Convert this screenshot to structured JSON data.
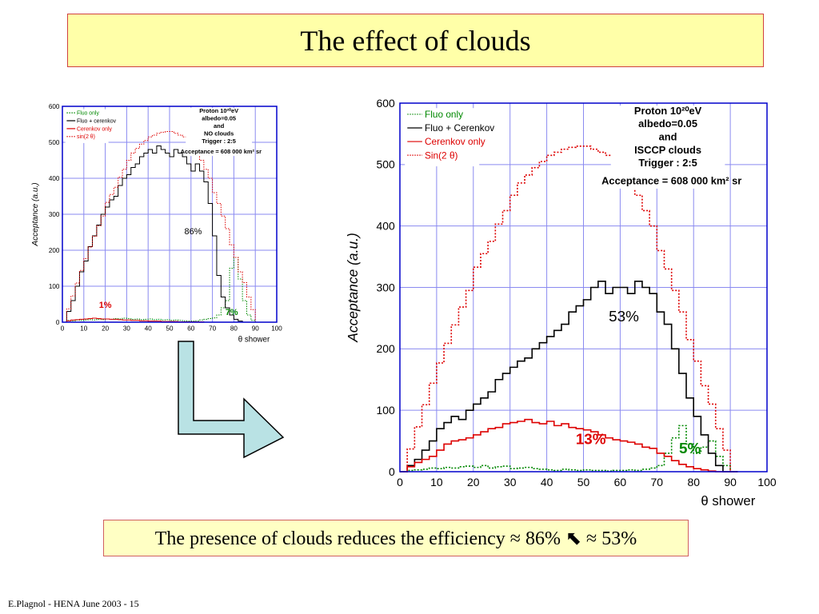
{
  "slide": {
    "title": "The effect of clouds",
    "summary_text": "The presence of clouds reduces the efficiency ≈ 86% ⬉ ≈ 53%",
    "footer": "E.Plagnol - HENA June 2003 - 15",
    "colors": {
      "title_bg": "#ffffa8",
      "title_border": "#d04040",
      "summary_bg": "#ffffc4",
      "arrow_fill": "#b9e2e4",
      "axes_frame": "#0000cc",
      "grid": "#8a8af0"
    }
  },
  "chart_data": [
    {
      "type": "line",
      "xlabel": "θ shower",
      "ylabel": "Acceptance (a.u.)",
      "xlim": [
        0,
        100
      ],
      "ylim": [
        0,
        600
      ],
      "x_ticks": [
        "0",
        "10",
        "20",
        "30",
        "40",
        "50",
        "60",
        "70",
        "80",
        "90",
        "100"
      ],
      "y_ticks": [
        "0",
        "100",
        "200",
        "300",
        "400",
        "500",
        "600"
      ],
      "grid": true,
      "legend_position": "top-left",
      "info_lines": [
        "Proton 10²⁰eV",
        "albedo=0.05",
        "and",
        "NO clouds",
        "Trigger : 2:5",
        "Acceptance = 608 000 km² sr"
      ],
      "annotations": [
        {
          "text": "86%",
          "x": 61,
          "y": 245,
          "color": "#000000"
        },
        {
          "text": "1%",
          "x": 20,
          "y": 40,
          "color": "#dd0000"
        },
        {
          "text": "7%",
          "x": 79,
          "y": 20,
          "color": "#008800"
        }
      ],
      "series": [
        {
          "name": "Fluo only",
          "color": "#008800",
          "style": "dotted",
          "x": [
            0,
            2,
            4,
            6,
            8,
            10,
            12,
            14,
            16,
            18,
            20,
            22,
            24,
            26,
            28,
            30,
            32,
            34,
            36,
            38,
            40,
            42,
            44,
            46,
            48,
            50,
            52,
            54,
            56,
            58,
            60,
            62,
            64,
            66,
            68,
            70,
            72,
            74,
            76,
            78,
            80,
            82,
            84,
            86,
            88,
            90
          ],
          "y": [
            0,
            5,
            4,
            6,
            5,
            6,
            7,
            6,
            8,
            7,
            9,
            8,
            10,
            9,
            11,
            10,
            8,
            9,
            7,
            8,
            9,
            7,
            8,
            6,
            7,
            5,
            6,
            5,
            4,
            3,
            3,
            4,
            6,
            8,
            10,
            12,
            20,
            40,
            60,
            150,
            180,
            120,
            60,
            20,
            5,
            0
          ]
        },
        {
          "name": "Fluo + cerenkov",
          "color": "#000000",
          "style": "solid",
          "x": [
            0,
            2,
            4,
            6,
            8,
            10,
            12,
            14,
            16,
            18,
            20,
            22,
            24,
            26,
            28,
            30,
            32,
            34,
            36,
            38,
            40,
            42,
            44,
            46,
            48,
            50,
            52,
            54,
            56,
            58,
            60,
            62,
            64,
            66,
            68,
            70,
            72,
            74,
            76,
            78,
            80,
            82,
            84,
            86,
            88,
            90
          ],
          "y": [
            0,
            30,
            60,
            100,
            140,
            170,
            210,
            240,
            270,
            300,
            320,
            340,
            350,
            380,
            400,
            410,
            430,
            440,
            460,
            470,
            480,
            470,
            490,
            480,
            470,
            460,
            480,
            470,
            460,
            440,
            420,
            440,
            420,
            390,
            330,
            240,
            130,
            70,
            40,
            20,
            8,
            3,
            0,
            0,
            0,
            0
          ]
        },
        {
          "name": "Cerenkov only",
          "color": "#dd0000",
          "style": "solid",
          "x": [
            0,
            2,
            4,
            6,
            8,
            10,
            12,
            14,
            16,
            18,
            20,
            22,
            24,
            26,
            28,
            30,
            32,
            34,
            36,
            38,
            40,
            42,
            44,
            46,
            48,
            50,
            52,
            54,
            56,
            58,
            60,
            62,
            64,
            66,
            68,
            70,
            72,
            74,
            76,
            78,
            80,
            82,
            84,
            86,
            88,
            90
          ],
          "y": [
            0,
            4,
            6,
            7,
            8,
            9,
            10,
            11,
            10,
            9,
            9,
            8,
            8,
            7,
            6,
            6,
            5,
            5,
            4,
            4,
            3,
            3,
            3,
            2,
            2,
            2,
            2,
            1,
            1,
            1,
            1,
            1,
            1,
            0,
            0,
            0,
            0,
            0,
            0,
            0,
            0,
            0,
            0,
            0,
            0,
            0
          ]
        },
        {
          "name": "sin(2 θ)",
          "color": "#dd0000",
          "style": "dotted",
          "x": [
            0,
            2,
            4,
            6,
            8,
            10,
            12,
            14,
            16,
            18,
            20,
            22,
            24,
            26,
            28,
            30,
            32,
            34,
            36,
            38,
            40,
            42,
            44,
            46,
            48,
            50,
            52,
            54,
            56,
            58,
            60,
            62,
            64,
            66,
            68,
            70,
            72,
            74,
            76,
            78,
            80,
            82,
            84,
            86,
            88,
            90
          ],
          "y": [
            0,
            37,
            73,
            109,
            144,
            177,
            209,
            239,
            268,
            295,
            333,
            355,
            375,
            403,
            425,
            450,
            470,
            483,
            495,
            505,
            515,
            520,
            525,
            528,
            530,
            530,
            525,
            520,
            515,
            505,
            490,
            470,
            450,
            425,
            400,
            360,
            330,
            295,
            260,
            215,
            180,
            140,
            110,
            70,
            35,
            0
          ]
        }
      ]
    },
    {
      "type": "line",
      "xlabel": "θ shower",
      "ylabel": "Acceptance (a.u.)",
      "xlim": [
        0,
        100
      ],
      "ylim": [
        0,
        600
      ],
      "x_ticks": [
        "0",
        "10",
        "20",
        "30",
        "40",
        "50",
        "60",
        "70",
        "80",
        "90",
        "100"
      ],
      "y_ticks": [
        "0",
        "100",
        "200",
        "300",
        "400",
        "500",
        "600"
      ],
      "grid": true,
      "legend_position": "top-left",
      "info_lines": [
        "Proton 10²⁰eV",
        "albedo=0.05",
        "and",
        "ISCCP clouds",
        "Trigger : 2:5",
        "Acceptance = 608 000 km² sr"
      ],
      "annotations": [
        {
          "text": "53%",
          "x": 61,
          "y": 245,
          "color": "#000000"
        },
        {
          "text": "13%",
          "x": 52,
          "y": 45,
          "color": "#dd0000"
        },
        {
          "text": "5%",
          "x": 79,
          "y": 30,
          "color": "#008800"
        }
      ],
      "series": [
        {
          "name": "Fluo only",
          "color": "#008800",
          "style": "dotted",
          "x": [
            0,
            2,
            4,
            6,
            8,
            10,
            12,
            14,
            16,
            18,
            20,
            22,
            24,
            26,
            28,
            30,
            32,
            34,
            36,
            38,
            40,
            42,
            44,
            46,
            48,
            50,
            52,
            54,
            56,
            58,
            60,
            62,
            64,
            66,
            68,
            70,
            72,
            74,
            76,
            78,
            80,
            82,
            84,
            86,
            88,
            90
          ],
          "y": [
            0,
            2,
            3,
            4,
            6,
            5,
            7,
            6,
            8,
            9,
            7,
            10,
            6,
            8,
            9,
            5,
            6,
            7,
            5,
            4,
            3,
            2,
            4,
            3,
            2,
            3,
            2,
            2,
            1,
            2,
            2,
            3,
            2,
            4,
            6,
            10,
            30,
            55,
            75,
            45,
            30,
            40,
            50,
            25,
            10,
            0
          ]
        },
        {
          "name": "Fluo + Cerenkov",
          "color": "#000000",
          "style": "solid",
          "x": [
            0,
            2,
            4,
            6,
            8,
            10,
            12,
            14,
            16,
            18,
            20,
            22,
            24,
            26,
            28,
            30,
            32,
            34,
            36,
            38,
            40,
            42,
            44,
            46,
            48,
            50,
            52,
            54,
            56,
            58,
            60,
            62,
            64,
            66,
            68,
            70,
            72,
            74,
            76,
            78,
            80,
            82,
            84,
            86,
            88,
            90
          ],
          "y": [
            0,
            10,
            20,
            35,
            50,
            70,
            80,
            90,
            85,
            100,
            110,
            120,
            130,
            150,
            160,
            170,
            180,
            185,
            200,
            210,
            220,
            230,
            240,
            260,
            270,
            280,
            300,
            310,
            290,
            300,
            300,
            290,
            310,
            300,
            290,
            260,
            240,
            200,
            160,
            120,
            90,
            60,
            30,
            10,
            0,
            0
          ]
        },
        {
          "name": "Cerenkov only",
          "color": "#dd0000",
          "style": "solid",
          "x": [
            0,
            2,
            4,
            6,
            8,
            10,
            12,
            14,
            16,
            18,
            20,
            22,
            24,
            26,
            28,
            30,
            32,
            34,
            36,
            38,
            40,
            42,
            44,
            46,
            48,
            50,
            52,
            54,
            56,
            58,
            60,
            62,
            64,
            66,
            68,
            70,
            72,
            74,
            76,
            78,
            80,
            82,
            84,
            86,
            88,
            90
          ],
          "y": [
            0,
            8,
            15,
            20,
            25,
            35,
            45,
            50,
            52,
            55,
            60,
            65,
            70,
            72,
            78,
            80,
            82,
            85,
            80,
            78,
            82,
            75,
            78,
            72,
            70,
            68,
            65,
            60,
            55,
            52,
            50,
            48,
            45,
            40,
            38,
            30,
            25,
            18,
            12,
            8,
            5,
            3,
            1,
            0,
            0,
            0
          ]
        },
        {
          "name": "Sin(2 θ)",
          "color": "#dd0000",
          "style": "dotted",
          "x": [
            0,
            2,
            4,
            6,
            8,
            10,
            12,
            14,
            16,
            18,
            20,
            22,
            24,
            26,
            28,
            30,
            32,
            34,
            36,
            38,
            40,
            42,
            44,
            46,
            48,
            50,
            52,
            54,
            56,
            58,
            60,
            62,
            64,
            66,
            68,
            70,
            72,
            74,
            76,
            78,
            80,
            82,
            84,
            86,
            88,
            90
          ],
          "y": [
            0,
            37,
            73,
            109,
            144,
            177,
            209,
            239,
            268,
            295,
            333,
            355,
            375,
            403,
            425,
            450,
            470,
            483,
            495,
            505,
            515,
            520,
            525,
            528,
            530,
            530,
            525,
            520,
            515,
            505,
            490,
            470,
            450,
            425,
            400,
            360,
            330,
            295,
            260,
            215,
            180,
            140,
            110,
            70,
            35,
            0
          ]
        }
      ]
    }
  ]
}
